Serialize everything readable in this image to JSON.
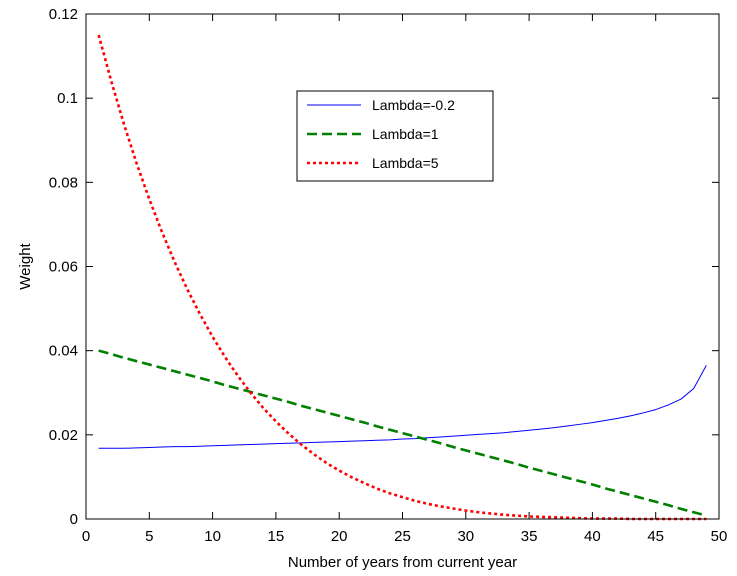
{
  "chart_data": {
    "type": "line",
    "title": "",
    "xlabel": "Number of years from current year",
    "ylabel": "Weight",
    "xlim": [
      0,
      50
    ],
    "ylim": [
      0,
      0.12
    ],
    "xticks": [
      0,
      5,
      10,
      15,
      20,
      25,
      30,
      35,
      40,
      45,
      50
    ],
    "yticks": [
      0,
      0.02,
      0.04,
      0.06,
      0.08,
      0.1,
      0.12
    ],
    "x_tick_labels": [
      "0",
      "5",
      "10",
      "15",
      "20",
      "25",
      "30",
      "35",
      "40",
      "45",
      "50"
    ],
    "y_tick_labels": [
      "0",
      "0.02",
      "0.04",
      "0.06",
      "0.08",
      "0.1",
      "0.12"
    ],
    "grid": false,
    "legend_position": "top-center",
    "x": [
      1,
      2,
      3,
      4,
      5,
      6,
      7,
      8,
      9,
      10,
      11,
      12,
      13,
      14,
      15,
      16,
      17,
      18,
      19,
      20,
      21,
      22,
      23,
      24,
      25,
      26,
      27,
      28,
      29,
      30,
      31,
      32,
      33,
      34,
      35,
      36,
      37,
      38,
      39,
      40,
      41,
      42,
      43,
      44,
      45,
      46,
      47,
      48,
      49
    ],
    "series": [
      {
        "name": "Lambda=-0.2",
        "color": "#0000ff",
        "style": "solid",
        "values": [
          0.0168,
          0.0168,
          0.0168,
          0.0169,
          0.017,
          0.0171,
          0.0172,
          0.0172,
          0.0173,
          0.0174,
          0.0175,
          0.0176,
          0.0177,
          0.0178,
          0.0179,
          0.018,
          0.0181,
          0.0182,
          0.0183,
          0.0184,
          0.0185,
          0.0186,
          0.0187,
          0.0188,
          0.019,
          0.0191,
          0.0193,
          0.0195,
          0.0197,
          0.0199,
          0.0201,
          0.0203,
          0.0205,
          0.0208,
          0.0211,
          0.0214,
          0.0217,
          0.0221,
          0.0225,
          0.0229,
          0.0234,
          0.0239,
          0.0245,
          0.0252,
          0.026,
          0.0271,
          0.0285,
          0.031,
          0.0365
        ]
      },
      {
        "name": "Lambda=1",
        "color": "#008000",
        "style": "dashed",
        "values": [
          0.04,
          0.0392,
          0.0383,
          0.0375,
          0.0367,
          0.0359,
          0.0351,
          0.0343,
          0.0335,
          0.0327,
          0.0318,
          0.031,
          0.0302,
          0.0294,
          0.0286,
          0.0278,
          0.0269,
          0.0261,
          0.0253,
          0.0245,
          0.0237,
          0.0229,
          0.022,
          0.0212,
          0.0204,
          0.0196,
          0.0188,
          0.018,
          0.0171,
          0.0163,
          0.0155,
          0.0147,
          0.0139,
          0.0131,
          0.0122,
          0.0114,
          0.0106,
          0.0098,
          0.009,
          0.0082,
          0.0073,
          0.0065,
          0.0057,
          0.0049,
          0.0041,
          0.0033,
          0.0024,
          0.0016,
          0.0008
        ]
      },
      {
        "name": "Lambda=5",
        "color": "#ff0000",
        "style": "dotted",
        "values": [
          0.115,
          0.104,
          0.0938,
          0.0845,
          0.076,
          0.0682,
          0.0611,
          0.0546,
          0.0487,
          0.0433,
          0.0384,
          0.034,
          0.03,
          0.0264,
          0.0232,
          0.0203,
          0.0177,
          0.0154,
          0.0133,
          0.0115,
          0.0099,
          0.0085,
          0.0072,
          0.0061,
          0.0052,
          0.0043,
          0.0036,
          0.003,
          0.0025,
          0.002,
          0.0016,
          0.0013,
          0.001,
          0.0008,
          0.0006,
          0.0005,
          0.0004,
          0.0003,
          0.0002,
          0.0001,
          0.0001,
          0.0001,
          0.0,
          0.0,
          0.0,
          0.0,
          0.0,
          0.0,
          0.0
        ]
      }
    ]
  }
}
